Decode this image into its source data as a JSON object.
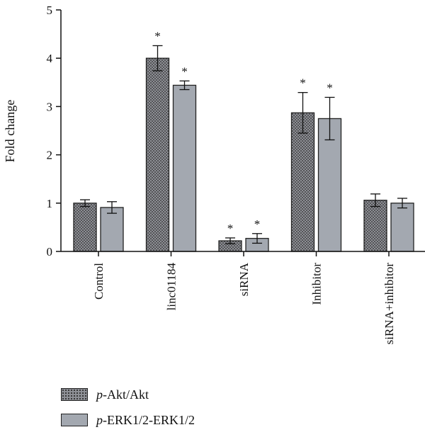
{
  "chart_data": {
    "type": "bar",
    "categories": [
      "Control",
      "linc01184",
      "siRNA",
      "Inhibitor",
      "siRNA+inhibitor"
    ],
    "series": [
      {
        "name": "p-Akt/Akt",
        "name_italic": "p",
        "name_rest": "-Akt/Akt",
        "values": [
          1.0,
          4.0,
          0.22,
          2.87,
          1.06
        ],
        "errors": [
          0.07,
          0.26,
          0.06,
          0.42,
          0.13
        ],
        "significant": [
          false,
          true,
          true,
          true,
          false
        ],
        "color": "#8d8f95",
        "pattern": "dotted"
      },
      {
        "name": "p-ERK1/2-ERK1/2",
        "name_italic": "p",
        "name_rest": "-ERK1/2-ERK1/2",
        "values": [
          0.91,
          3.44,
          0.27,
          2.75,
          1.0
        ],
        "errors": [
          0.12,
          0.09,
          0.1,
          0.44,
          0.1
        ],
        "significant": [
          false,
          true,
          true,
          true,
          false
        ],
        "color": "#a3a8b0",
        "pattern": "solid"
      }
    ],
    "ylabel": "Fold change",
    "xlabel": "",
    "ylim": [
      0,
      5
    ],
    "yticks": [
      0,
      1,
      2,
      3,
      4,
      5
    ],
    "significance_marker": "*",
    "grid": false,
    "legend_position": "bottom-left"
  }
}
